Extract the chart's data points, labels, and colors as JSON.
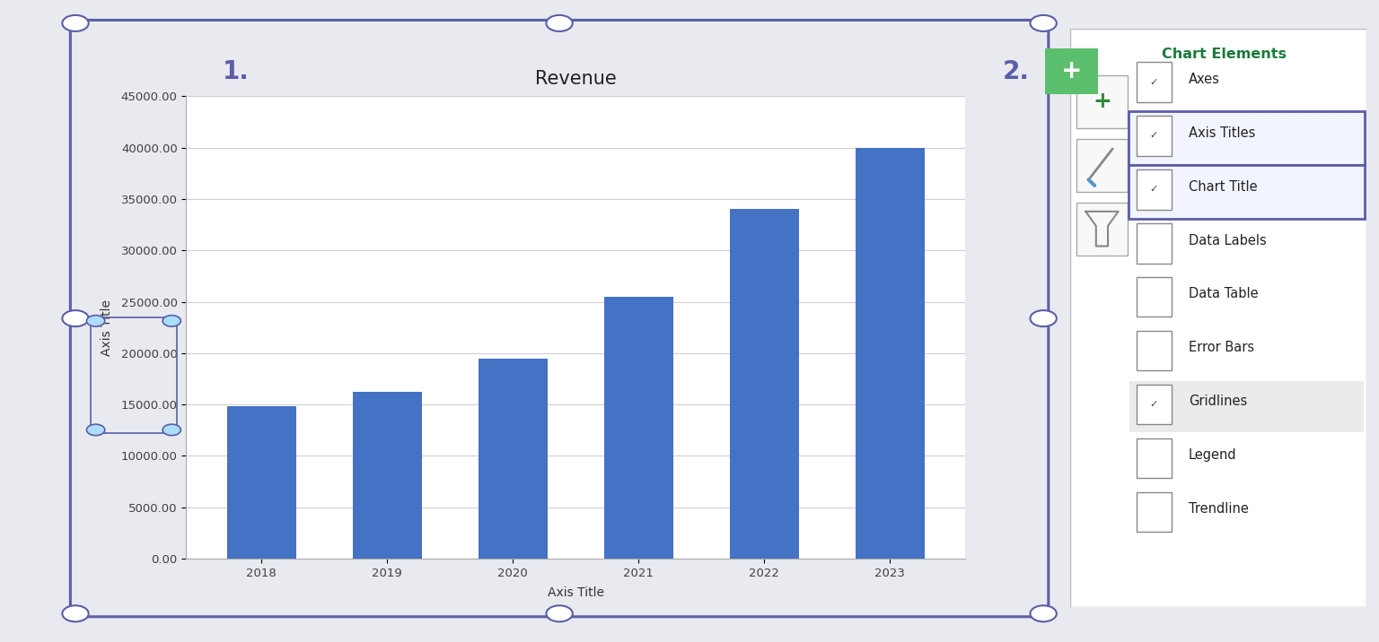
{
  "title": "Revenue",
  "xlabel": "Axis Title",
  "ylabel": "Axis Title",
  "categories": [
    "2018",
    "2019",
    "2020",
    "2021",
    "2022",
    "2023"
  ],
  "values": [
    14800,
    16200,
    19500,
    25500,
    34000,
    40000
  ],
  "bar_color": "#4472C4",
  "ylim": [
    0,
    45000
  ],
  "yticks": [
    0,
    5000,
    10000,
    15000,
    20000,
    25000,
    30000,
    35000,
    40000,
    45000
  ],
  "ytick_labels": [
    "0.00",
    "5000.00",
    "10000.00",
    "15000.00",
    "20000.00",
    "25000.00",
    "30000.00",
    "35000.00",
    "40000.00",
    "45000.00"
  ],
  "title_fontsize": 15,
  "axis_label_fontsize": 10,
  "tick_fontsize": 9.5,
  "bg_color": "#E8EAF0",
  "plot_bg_color": "#FFFFFF",
  "grid_color": "#D0D0D0",
  "border_color": "#5B5EA6",
  "annotation_color": "#5B5EA6",
  "chart_elements_title": "Chart Elements",
  "chart_elements_items": [
    {
      "label": "Axes",
      "checked": true,
      "highlighted": false,
      "gray_bg": false
    },
    {
      "label": "Axis Titles",
      "checked": true,
      "highlighted": true,
      "gray_bg": false
    },
    {
      "label": "Chart Title",
      "checked": true,
      "highlighted": true,
      "gray_bg": false
    },
    {
      "label": "Data Labels",
      "checked": false,
      "highlighted": false,
      "gray_bg": false
    },
    {
      "label": "Data Table",
      "checked": false,
      "highlighted": false,
      "gray_bg": false
    },
    {
      "label": "Error Bars",
      "checked": false,
      "highlighted": false,
      "gray_bg": false
    },
    {
      "label": "Gridlines",
      "checked": true,
      "highlighted": false,
      "gray_bg": true
    },
    {
      "label": "Legend",
      "checked": false,
      "highlighted": false,
      "gray_bg": false
    },
    {
      "label": "Trendline",
      "checked": false,
      "highlighted": false,
      "gray_bg": false
    }
  ]
}
